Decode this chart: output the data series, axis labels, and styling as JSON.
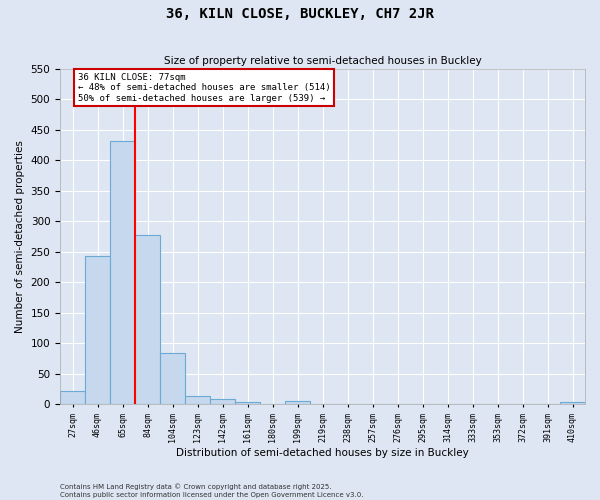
{
  "title1": "36, KILN CLOSE, BUCKLEY, CH7 2JR",
  "title2": "Size of property relative to semi-detached houses in Buckley",
  "xlabel": "Distribution of semi-detached houses by size in Buckley",
  "ylabel": "Number of semi-detached properties",
  "categories": [
    "27sqm",
    "46sqm",
    "65sqm",
    "84sqm",
    "104sqm",
    "123sqm",
    "142sqm",
    "161sqm",
    "180sqm",
    "199sqm",
    "219sqm",
    "238sqm",
    "257sqm",
    "276sqm",
    "295sqm",
    "314sqm",
    "333sqm",
    "353sqm",
    "372sqm",
    "391sqm",
    "410sqm"
  ],
  "values": [
    22,
    243,
    432,
    277,
    84,
    13,
    9,
    4,
    0,
    5,
    0,
    0,
    0,
    0,
    0,
    0,
    0,
    0,
    0,
    0,
    4
  ],
  "bar_color": "#c5d8ed",
  "bar_edge_color": "#6aaad4",
  "vline_x": 2.5,
  "vline_label": "36 KILN CLOSE: 77sqm",
  "annotation_smaller": "← 48% of semi-detached houses are smaller (514)",
  "annotation_larger": "50% of semi-detached houses are larger (539) →",
  "annotation_box_facecolor": "#ffffff",
  "annotation_box_edgecolor": "#cc0000",
  "ylim": [
    0,
    550
  ],
  "yticks": [
    0,
    50,
    100,
    150,
    200,
    250,
    300,
    350,
    400,
    450,
    500,
    550
  ],
  "background_color": "#dde6f2",
  "grid_color": "#ffffff",
  "footer1": "Contains HM Land Registry data © Crown copyright and database right 2025.",
  "footer2": "Contains public sector information licensed under the Open Government Licence v3.0."
}
